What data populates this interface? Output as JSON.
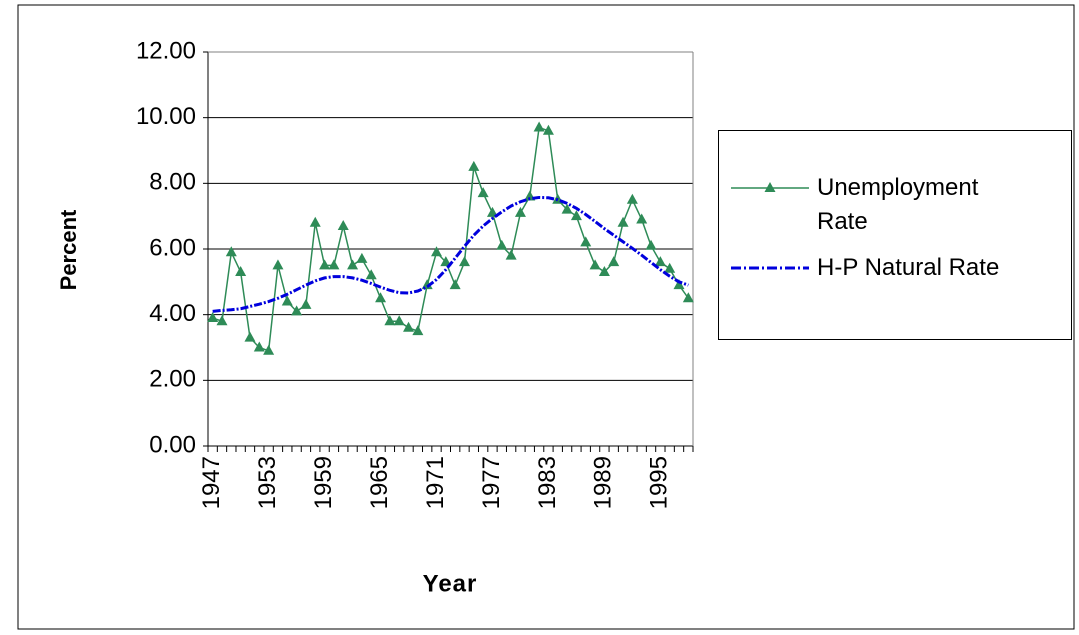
{
  "chart_data": {
    "type": "line",
    "y_label": "Percent",
    "x_label": "Year",
    "categories": [
      "1947",
      null,
      null,
      null,
      null,
      null,
      "1953",
      null,
      null,
      null,
      null,
      null,
      "1959",
      null,
      null,
      null,
      null,
      null,
      "1965",
      null,
      null,
      null,
      null,
      null,
      "1971",
      null,
      null,
      null,
      null,
      null,
      "1977",
      null,
      null,
      null,
      null,
      null,
      "1983",
      null,
      null,
      null,
      null,
      null,
      "1989",
      null,
      null,
      null,
      null,
      null,
      "1995",
      null,
      null,
      null
    ],
    "series": [
      {
        "name": "Unemployment Rate",
        "color": "#2e8b57",
        "marker": "triangle",
        "values": [
          3.9,
          3.8,
          5.9,
          5.3,
          3.3,
          3.0,
          2.9,
          5.5,
          4.4,
          4.1,
          4.3,
          6.8,
          5.5,
          5.5,
          6.7,
          5.5,
          5.7,
          5.2,
          4.5,
          3.8,
          3.8,
          3.6,
          3.5,
          4.9,
          5.9,
          5.6,
          4.9,
          5.6,
          8.5,
          7.7,
          7.1,
          6.1,
          5.8,
          7.1,
          7.6,
          9.7,
          9.6,
          7.5,
          7.2,
          7.0,
          6.2,
          5.5,
          5.3,
          5.6,
          6.8,
          7.5,
          6.9,
          6.1,
          5.6,
          5.4,
          4.9,
          4.5
        ]
      },
      {
        "name": "H-P Natural Rate",
        "color": "#0000dd",
        "dash": true,
        "values": [
          4.1,
          4.13,
          4.15,
          4.18,
          4.25,
          4.32,
          4.4,
          4.5,
          4.62,
          4.76,
          4.9,
          5.03,
          5.12,
          5.16,
          5.16,
          5.12,
          5.05,
          4.95,
          4.84,
          4.74,
          4.67,
          4.66,
          4.72,
          4.85,
          5.07,
          5.37,
          5.72,
          6.08,
          6.42,
          6.7,
          6.93,
          7.13,
          7.31,
          7.44,
          7.53,
          7.57,
          7.56,
          7.5,
          7.39,
          7.24,
          7.05,
          6.84,
          6.62,
          6.42,
          6.22,
          6.02,
          5.81,
          5.59,
          5.37,
          5.17,
          5.0,
          4.9
        ]
      }
    ],
    "ylim": [
      0,
      12
    ],
    "yticks": [
      {
        "value": 0,
        "label": "0.00"
      },
      {
        "value": 2,
        "label": "2.00"
      },
      {
        "value": 4,
        "label": "4.00"
      },
      {
        "value": 6,
        "label": "6.00"
      },
      {
        "value": 8,
        "label": "8.00"
      },
      {
        "value": 10,
        "label": "10.00"
      },
      {
        "value": 12,
        "label": "12.00"
      }
    ],
    "grid": true,
    "legend": "right"
  }
}
